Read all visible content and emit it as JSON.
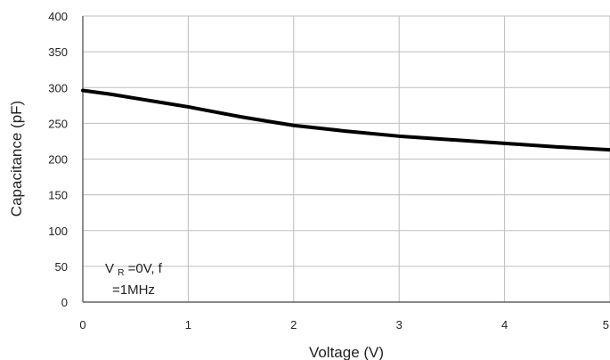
{
  "chart_data": {
    "type": "line",
    "title": "",
    "xlabel": "Voltage (V)",
    "ylabel": "Capacitance (pF)",
    "xlim": [
      0,
      5
    ],
    "ylim": [
      0,
      400
    ],
    "x_ticks": [
      0,
      1,
      2,
      3,
      4,
      5
    ],
    "y_ticks": [
      0,
      50,
      100,
      150,
      200,
      250,
      300,
      350,
      400
    ],
    "grid": true,
    "legend": "none",
    "series": [
      {
        "x": [
          0,
          0.25,
          0.5,
          0.75,
          1,
          1.25,
          1.5,
          1.75,
          2,
          2.5,
          3,
          3.5,
          4,
          4.5,
          5
        ],
        "y": [
          296,
          291,
          285,
          279,
          273,
          266,
          259,
          253,
          247,
          239,
          232,
          227,
          222,
          217,
          213
        ],
        "color": "#000000"
      }
    ],
    "annotation": {
      "line1_main": "V",
      "line1_sub": "R",
      "line1_rest": "=0V, f",
      "line2": "=1MHz"
    },
    "colors": {
      "grid": "#bdbdbd",
      "axis": "#444444",
      "line": "#000000"
    }
  }
}
